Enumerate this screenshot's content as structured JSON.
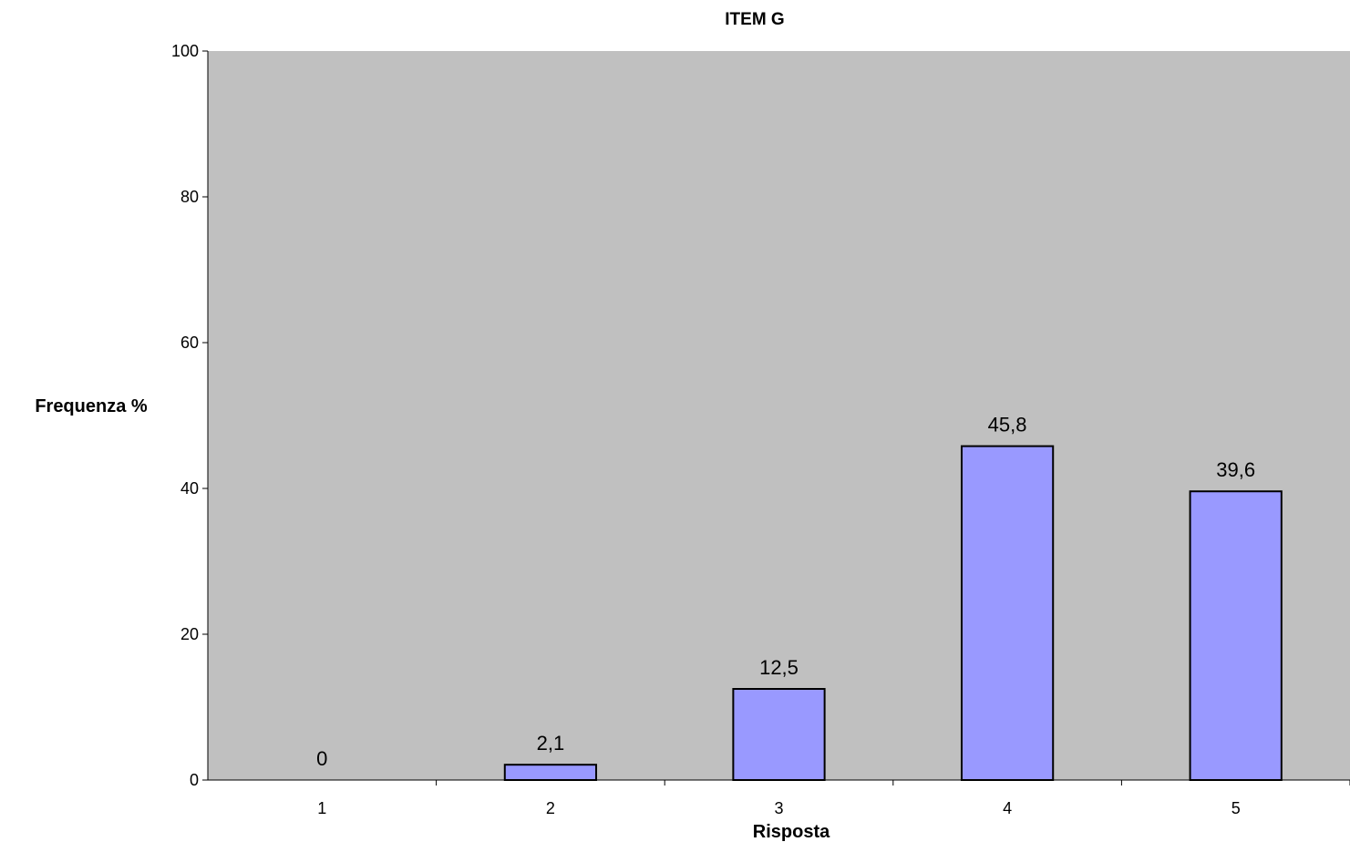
{
  "chart_data": {
    "type": "bar",
    "title": "ITEM G",
    "xlabel": "Risposta",
    "ylabel": "Frequenza %",
    "categories": [
      "1",
      "2",
      "3",
      "4",
      "5"
    ],
    "values": [
      0,
      2.1,
      12.5,
      45.8,
      39.6
    ],
    "data_labels": [
      "0",
      "2,1",
      "12,5",
      "45,8",
      "39,6"
    ],
    "yticks": [
      "0",
      "20",
      "40",
      "60",
      "80",
      "100"
    ],
    "ylim": [
      0,
      100
    ],
    "grid": false,
    "legend": "none",
    "colors": {
      "plot_background": "#c0c0c0",
      "bar_fill": "#9999ff",
      "bar_stroke": "#000000"
    }
  }
}
